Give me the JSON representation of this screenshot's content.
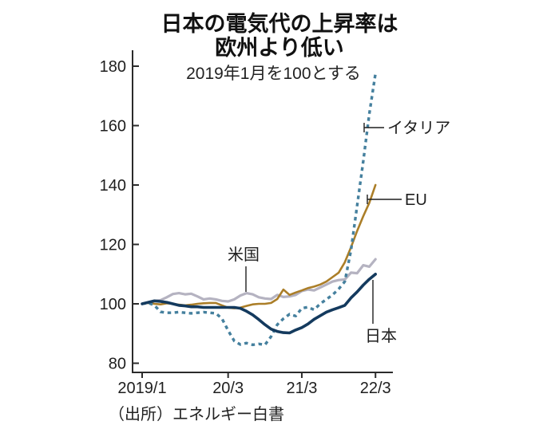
{
  "title": {
    "line1": "日本の電気代の上昇率は",
    "line2": "欧州より低い",
    "subtitle": "2019年1月を100とする"
  },
  "source": "（出所）エネルギー白書",
  "chart_data": {
    "type": "line",
    "title": "日本の電気代の上昇率は欧州より低い",
    "subtitle": "2019年1月を100とする",
    "x_interval": "monthly",
    "x_start": "2019/1",
    "x_end": "22/3",
    "n_points": 39,
    "x_tick_labels": [
      "2019/1",
      "20/3",
      "21/3",
      "22/3"
    ],
    "x_tick_indices": [
      0,
      14,
      26,
      38
    ],
    "y_ticks": [
      80,
      100,
      120,
      140,
      160,
      180
    ],
    "ylim": [
      80,
      180
    ],
    "grid": false,
    "legend": "inline-annotations",
    "axis_color": "#2b2b2b",
    "series": [
      {
        "name": "イタリア",
        "id": "italy",
        "color": "#45809e",
        "style": "dashed",
        "width": 3.4,
        "values": [
          100,
          100.3,
          99.5,
          97.3,
          97,
          97,
          97.2,
          97,
          96.8,
          97,
          97.2,
          97,
          96.8,
          95,
          91,
          87.5,
          86.3,
          86.8,
          86.2,
          86.5,
          86.2,
          89,
          93,
          95,
          96.5,
          95.9,
          98.5,
          98.9,
          98,
          100,
          101.5,
          103,
          105,
          107.5,
          118,
          133,
          148,
          164,
          177.5
        ]
      },
      {
        "name": "EU",
        "id": "eu",
        "color": "#ab7e28",
        "style": "solid",
        "width": 2.6,
        "values": [
          100,
          100.3,
          100,
          99.8,
          100.2,
          100,
          99.7,
          99.5,
          99.7,
          100,
          100.2,
          100.3,
          100.3,
          99.5,
          98.7,
          98.5,
          98.7,
          99.3,
          99.8,
          100,
          100,
          100.3,
          101.6,
          104.8,
          103,
          103.8,
          104.5,
          105.3,
          105.8,
          106.5,
          107.5,
          109,
          110.5,
          114,
          119,
          124.5,
          129.5,
          134,
          140
        ]
      },
      {
        "name": "米国",
        "id": "us",
        "color": "#b5b3c1",
        "style": "solid",
        "width": 3.2,
        "values": [
          100,
          100.5,
          101,
          101.2,
          102.2,
          103.3,
          103.6,
          103.2,
          103.4,
          102.5,
          101.5,
          101.8,
          101.5,
          101,
          100.8,
          101.5,
          102.8,
          103.6,
          103.2,
          102.2,
          101.8,
          101.6,
          103,
          102.3,
          102.5,
          103,
          104.3,
          104.8,
          104.5,
          105.5,
          106.5,
          107.5,
          108,
          108.2,
          110.5,
          110.3,
          113,
          112.5,
          115
        ]
      },
      {
        "name": "日本",
        "id": "japan",
        "color": "#143a5e",
        "style": "solid",
        "width": 3.6,
        "values": [
          100,
          100.5,
          101,
          100.8,
          100.5,
          100,
          99.5,
          99.3,
          99,
          99,
          98.8,
          98.8,
          98.8,
          98.8,
          98.8,
          98.8,
          98.5,
          97.5,
          96.3,
          94.7,
          93,
          91.5,
          90.7,
          90.3,
          90.2,
          91.2,
          92,
          93.2,
          94.8,
          96,
          97.2,
          98,
          98.7,
          99.5,
          102,
          104,
          106.3,
          108.3,
          110
        ]
      }
    ]
  }
}
